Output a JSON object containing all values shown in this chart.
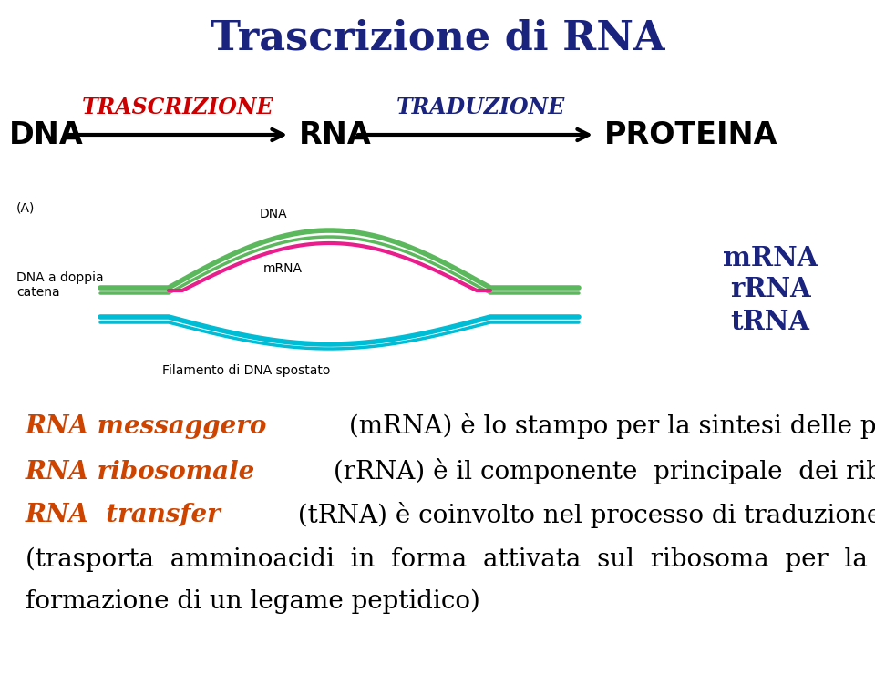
{
  "title": "Trascrizione di RNA",
  "title_color": "#1a237e",
  "title_fontsize": 32,
  "bg_color": "#ffffff",
  "arrow_row": {
    "dna_label": "DNA",
    "rna_label": "RNA",
    "proteina_label": "PROTEINA",
    "trascrizione_label": "TRASCRIZIONE",
    "traduzione_label": "TRADUZIONE",
    "labels_color": "#000000",
    "trascrizione_color": "#cc0000",
    "traduzione_color": "#1a237e",
    "label_fontsize": 24,
    "arrow_label_fontsize": 17
  },
  "diagram": {
    "label_A": "(A)",
    "label_DNA": "DNA",
    "label_mRNA_curve": "mRNA",
    "label_dna_doppia": "DNA a doppia\ncatena",
    "label_filamento": "Filamento di DNA spostato",
    "mrna_legend": "mRNA",
    "rrna_legend": "rRNA",
    "trna_legend": "tRNA",
    "legend_color": "#1a237e",
    "green_color": "#5cb85c",
    "pink_color": "#e91e8c",
    "cyan_color": "#00bcd4"
  },
  "text_lines": [
    {
      "colored_part": "RNA messaggero",
      "colored_color": "#cc4400",
      "rest": " (mRNA) è lo stampo per la sintesi delle proteine",
      "rest_color": "#000000"
    },
    {
      "colored_part": "RNA ribosomale",
      "colored_color": "#cc4400",
      "rest": " (rRNA) è il componente  principale  dei ribosomi",
      "rest_color": "#000000"
    },
    {
      "colored_part": "RNA  transfer",
      "colored_color": "#cc4400",
      "rest": "  (tRNA) è coinvolto nel processo di traduzione",
      "rest_color": "#000000"
    }
  ],
  "text_line4": "(trasporta  amminoacidi  in  forma  attivata  sul  ribosoma  per  la",
  "text_line5": "formazione di un legame peptidico)"
}
